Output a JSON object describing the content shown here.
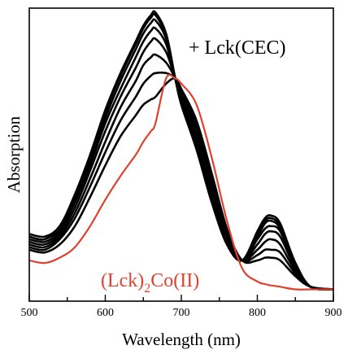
{
  "chart_data": {
    "type": "line",
    "xlabel": "Wavelength (nm)",
    "ylabel": "Absorption",
    "xlim": [
      500,
      900
    ],
    "ylim": [
      0,
      1.0
    ],
    "x_ticks": [
      "500",
      "600",
      "700",
      "800",
      "900"
    ],
    "y_ticks_shown": false,
    "grid": false,
    "annotations": {
      "titration": "+ Lck(CEC)",
      "complex_prefix": "(Lck)",
      "complex_sub": "2",
      "complex_suffix": "Co(II)"
    },
    "colors": {
      "black_series": "#000000",
      "red_series": "#e0402f"
    },
    "x": [
      500,
      520,
      540,
      560,
      580,
      600,
      620,
      640,
      650,
      660,
      666,
      680,
      692,
      700,
      720,
      740,
      760,
      780,
      800,
      810,
      818,
      830,
      850,
      870,
      900
    ],
    "series": [
      {
        "role": "initial (Lck)2Co(II)",
        "color": "#e0402f",
        "values": [
          0.13,
          0.12,
          0.14,
          0.18,
          0.26,
          0.36,
          0.45,
          0.53,
          0.58,
          0.62,
          0.65,
          0.82,
          0.82,
          0.8,
          0.72,
          0.52,
          0.28,
          0.1,
          0.05,
          0.04,
          0.035,
          0.03,
          0.02,
          0.02,
          0.02
        ]
      },
      {
        "role": "titration step 1",
        "color": "#000000",
        "values": [
          0.17,
          0.16,
          0.19,
          0.26,
          0.37,
          0.49,
          0.6,
          0.68,
          0.72,
          0.74,
          0.75,
          0.8,
          0.82,
          0.78,
          0.66,
          0.46,
          0.25,
          0.13,
          0.13,
          0.14,
          0.14,
          0.13,
          0.07,
          0.03,
          0.02
        ]
      },
      {
        "role": "titration step 2",
        "color": "#000000",
        "values": [
          0.18,
          0.17,
          0.21,
          0.29,
          0.41,
          0.54,
          0.66,
          0.75,
          0.8,
          0.83,
          0.84,
          0.84,
          0.82,
          0.77,
          0.64,
          0.44,
          0.24,
          0.13,
          0.15,
          0.17,
          0.17,
          0.16,
          0.08,
          0.03,
          0.02
        ]
      },
      {
        "role": "titration step 3",
        "color": "#000000",
        "values": [
          0.19,
          0.18,
          0.22,
          0.31,
          0.44,
          0.58,
          0.71,
          0.81,
          0.87,
          0.9,
          0.91,
          0.88,
          0.82,
          0.76,
          0.62,
          0.42,
          0.23,
          0.13,
          0.17,
          0.2,
          0.21,
          0.19,
          0.09,
          0.03,
          0.02
        ]
      },
      {
        "role": "titration step 4",
        "color": "#000000",
        "values": [
          0.2,
          0.19,
          0.23,
          0.33,
          0.47,
          0.62,
          0.75,
          0.86,
          0.92,
          0.96,
          0.97,
          0.92,
          0.82,
          0.75,
          0.6,
          0.4,
          0.22,
          0.13,
          0.19,
          0.23,
          0.24,
          0.22,
          0.1,
          0.03,
          0.02
        ]
      },
      {
        "role": "titration step 5",
        "color": "#000000",
        "values": [
          0.21,
          0.2,
          0.24,
          0.35,
          0.49,
          0.65,
          0.78,
          0.9,
          0.96,
          1.0,
          1.01,
          0.95,
          0.82,
          0.74,
          0.58,
          0.38,
          0.21,
          0.13,
          0.21,
          0.25,
          0.26,
          0.24,
          0.11,
          0.03,
          0.02
        ]
      },
      {
        "role": "titration step 6",
        "color": "#000000",
        "values": [
          0.22,
          0.21,
          0.25,
          0.36,
          0.51,
          0.67,
          0.81,
          0.93,
          0.99,
          1.03,
          1.04,
          0.97,
          0.82,
          0.73,
          0.57,
          0.37,
          0.2,
          0.13,
          0.22,
          0.27,
          0.28,
          0.25,
          0.11,
          0.03,
          0.02
        ]
      },
      {
        "role": "titration step 7",
        "color": "#000000",
        "values": [
          0.22,
          0.21,
          0.26,
          0.37,
          0.52,
          0.69,
          0.83,
          0.95,
          1.01,
          1.05,
          1.06,
          0.98,
          0.82,
          0.73,
          0.56,
          0.36,
          0.2,
          0.13,
          0.23,
          0.28,
          0.29,
          0.26,
          0.12,
          0.03,
          0.02
        ]
      },
      {
        "role": "titration step 8 (final)",
        "color": "#000000",
        "values": [
          0.23,
          0.22,
          0.26,
          0.38,
          0.53,
          0.7,
          0.84,
          0.96,
          1.02,
          1.06,
          1.07,
          0.99,
          0.82,
          0.72,
          0.55,
          0.35,
          0.19,
          0.13,
          0.24,
          0.29,
          0.3,
          0.27,
          0.12,
          0.03,
          0.02
        ]
      }
    ]
  }
}
